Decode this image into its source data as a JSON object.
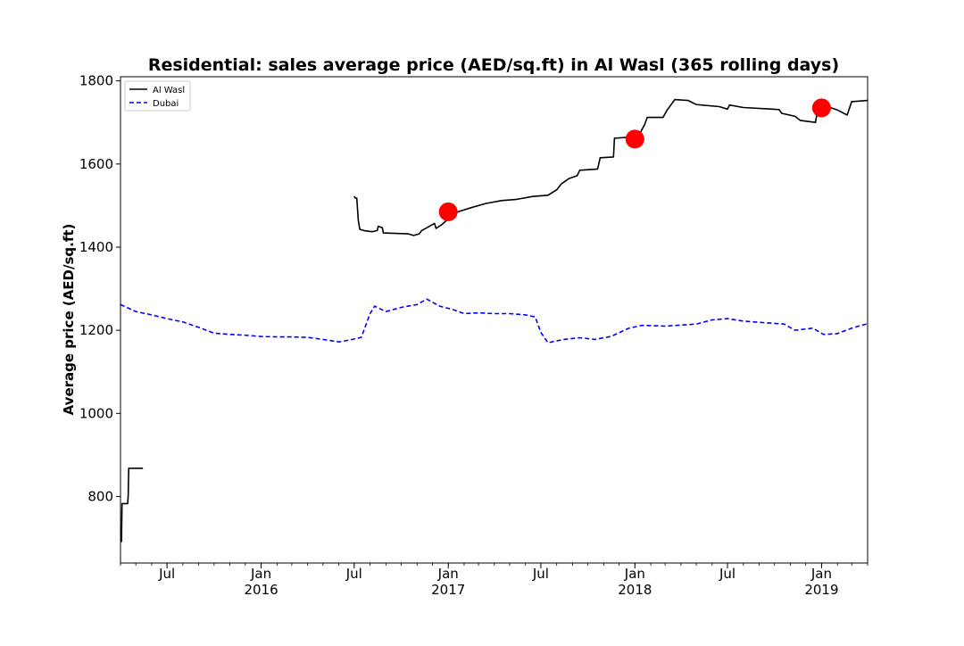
{
  "chart_data": {
    "type": "line",
    "title": "Residential: sales average price (AED/sq.ft) in Al Wasl (365 rolling days)",
    "xlabel": "",
    "ylabel": "Average price (AED/sq.ft)",
    "xlim": [
      "2015-04-01",
      "2019-04-01"
    ],
    "ylim": [
      640,
      1810
    ],
    "y_ticks": [
      800,
      1000,
      1200,
      1400,
      1600,
      1800
    ],
    "x_ticks": [
      {
        "date": "2015-07-01",
        "label": "Jul",
        "year": ""
      },
      {
        "date": "2016-01-01",
        "label": "Jan",
        "year": "2016"
      },
      {
        "date": "2016-07-01",
        "label": "Jul",
        "year": ""
      },
      {
        "date": "2017-01-01",
        "label": "Jan",
        "year": "2017"
      },
      {
        "date": "2017-07-01",
        "label": "Jul",
        "year": ""
      },
      {
        "date": "2018-01-01",
        "label": "Jan",
        "year": "2018"
      },
      {
        "date": "2018-07-01",
        "label": "Jul",
        "year": ""
      },
      {
        "date": "2019-01-01",
        "label": "Jan",
        "year": "2019"
      }
    ],
    "grid": false,
    "legend_position": "top-left",
    "series": [
      {
        "name": "Al Wasl",
        "color": "#000000",
        "style": "solid",
        "segments": [
          [
            [
              "2015-04-01",
              692
            ],
            [
              "2015-04-03",
              692
            ],
            [
              "2015-04-04",
              783
            ],
            [
              "2015-04-15",
              783
            ],
            [
              "2015-04-16",
              800
            ],
            [
              "2015-04-17",
              868
            ],
            [
              "2015-05-15",
              868
            ]
          ],
          [
            [
              "2016-07-01",
              1523
            ],
            [
              "2016-07-03",
              1518
            ],
            [
              "2016-07-06",
              1518
            ],
            [
              "2016-07-09",
              1465
            ],
            [
              "2016-07-12",
              1443
            ],
            [
              "2016-07-20",
              1440
            ],
            [
              "2016-08-05",
              1437
            ],
            [
              "2016-08-15",
              1440
            ],
            [
              "2016-08-17",
              1450
            ],
            [
              "2016-08-25",
              1447
            ],
            [
              "2016-08-27",
              1434
            ],
            [
              "2016-09-20",
              1433
            ],
            [
              "2016-10-15",
              1432
            ],
            [
              "2016-10-25",
              1428
            ],
            [
              "2016-11-05",
              1432
            ],
            [
              "2016-11-10",
              1440
            ],
            [
              "2016-11-25",
              1450
            ],
            [
              "2016-12-05",
              1457
            ],
            [
              "2016-12-08",
              1445
            ],
            [
              "2016-12-20",
              1455
            ],
            [
              "2017-01-05",
              1472
            ],
            [
              "2017-01-20",
              1485
            ],
            [
              "2017-02-15",
              1495
            ],
            [
              "2017-03-15",
              1505
            ],
            [
              "2017-04-15",
              1512
            ],
            [
              "2017-05-15",
              1515
            ],
            [
              "2017-06-15",
              1522
            ],
            [
              "2017-07-15",
              1525
            ],
            [
              "2017-08-01",
              1538
            ],
            [
              "2017-08-10",
              1552
            ],
            [
              "2017-08-25",
              1565
            ],
            [
              "2017-09-10",
              1572
            ],
            [
              "2017-09-15",
              1585
            ],
            [
              "2017-10-20",
              1588
            ],
            [
              "2017-10-25",
              1615
            ],
            [
              "2017-11-20",
              1617
            ],
            [
              "2017-11-22",
              1662
            ],
            [
              "2017-12-15",
              1664
            ],
            [
              "2018-01-01",
              1662
            ],
            [
              "2018-01-10",
              1672
            ],
            [
              "2018-01-20",
              1695
            ],
            [
              "2018-01-25",
              1712
            ],
            [
              "2018-02-25",
              1712
            ],
            [
              "2018-03-05",
              1730
            ],
            [
              "2018-03-20",
              1755
            ],
            [
              "2018-04-15",
              1753
            ],
            [
              "2018-05-01",
              1743
            ],
            [
              "2018-06-15",
              1738
            ],
            [
              "2018-07-01",
              1732
            ],
            [
              "2018-07-05",
              1742
            ],
            [
              "2018-08-01",
              1736
            ],
            [
              "2018-09-15",
              1733
            ],
            [
              "2018-10-10",
              1731
            ],
            [
              "2018-10-15",
              1722
            ],
            [
              "2018-11-10",
              1715
            ],
            [
              "2018-11-20",
              1705
            ],
            [
              "2018-12-20",
              1700
            ],
            [
              "2018-12-25",
              1735
            ],
            [
              "2019-01-20",
              1735
            ],
            [
              "2019-02-01",
              1730
            ],
            [
              "2019-02-20",
              1718
            ],
            [
              "2019-03-01",
              1750
            ],
            [
              "2019-04-01",
              1753
            ]
          ]
        ]
      },
      {
        "name": "Dubai",
        "color": "#0000ff",
        "style": "dashed",
        "points": [
          [
            "2015-04-01",
            1262
          ],
          [
            "2015-05-01",
            1245
          ],
          [
            "2015-06-01",
            1237
          ],
          [
            "2015-07-01",
            1228
          ],
          [
            "2015-08-01",
            1220
          ],
          [
            "2015-09-01",
            1207
          ],
          [
            "2015-10-01",
            1193
          ],
          [
            "2015-11-01",
            1190
          ],
          [
            "2015-12-01",
            1188
          ],
          [
            "2016-01-01",
            1185
          ],
          [
            "2016-02-01",
            1184
          ],
          [
            "2016-03-01",
            1184
          ],
          [
            "2016-04-01",
            1183
          ],
          [
            "2016-05-01",
            1178
          ],
          [
            "2016-06-01",
            1172
          ],
          [
            "2016-06-20",
            1176
          ],
          [
            "2016-07-15",
            1183
          ],
          [
            "2016-08-01",
            1240
          ],
          [
            "2016-08-10",
            1258
          ],
          [
            "2016-09-01",
            1245
          ],
          [
            "2016-10-01",
            1255
          ],
          [
            "2016-11-01",
            1262
          ],
          [
            "2016-11-20",
            1275
          ],
          [
            "2016-12-15",
            1258
          ],
          [
            "2017-01-10",
            1250
          ],
          [
            "2017-02-01",
            1240
          ],
          [
            "2017-03-01",
            1242
          ],
          [
            "2017-04-01",
            1240
          ],
          [
            "2017-05-01",
            1240
          ],
          [
            "2017-06-01",
            1237
          ],
          [
            "2017-06-20",
            1232
          ],
          [
            "2017-07-01",
            1195
          ],
          [
            "2017-07-15",
            1170
          ],
          [
            "2017-08-15",
            1178
          ],
          [
            "2017-09-15",
            1182
          ],
          [
            "2017-10-15",
            1178
          ],
          [
            "2017-11-15",
            1185
          ],
          [
            "2017-12-20",
            1205
          ],
          [
            "2018-01-15",
            1212
          ],
          [
            "2018-03-01",
            1210
          ],
          [
            "2018-05-01",
            1215
          ],
          [
            "2018-06-01",
            1225
          ],
          [
            "2018-07-01",
            1228
          ],
          [
            "2018-08-01",
            1222
          ],
          [
            "2018-09-15",
            1218
          ],
          [
            "2018-10-20",
            1215
          ],
          [
            "2018-11-10",
            1200
          ],
          [
            "2018-12-15",
            1205
          ],
          [
            "2019-01-05",
            1190
          ],
          [
            "2019-02-01",
            1192
          ],
          [
            "2019-03-01",
            1205
          ],
          [
            "2019-04-01",
            1216
          ]
        ]
      }
    ],
    "markers": [
      {
        "x": "2017-01-01",
        "y": 1485,
        "color": "#ff0000"
      },
      {
        "x": "2018-01-01",
        "y": 1660,
        "color": "#ff0000"
      },
      {
        "x": "2019-01-01",
        "y": 1735,
        "color": "#ff0000"
      }
    ]
  }
}
